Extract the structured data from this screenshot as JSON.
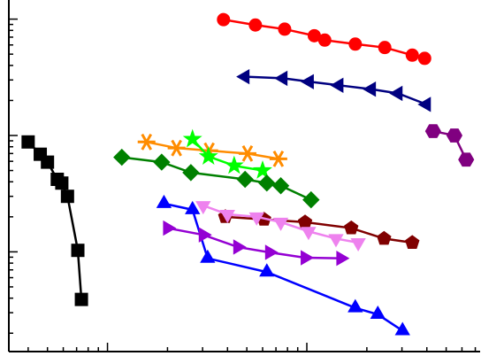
{
  "chart_data": {
    "type": "line",
    "xscale": "log",
    "yscale": "log",
    "xlim": [
      0.32,
      74
    ],
    "ylim": [
      0.0139,
      14.6
    ],
    "xticks": [
      0.4,
      0.5,
      0.6,
      0.7,
      0.8,
      0.9,
      1,
      2,
      3,
      4,
      5,
      6,
      7,
      8,
      9,
      10,
      20,
      30,
      40,
      50,
      60,
      70
    ],
    "yticks": [
      0.02,
      0.03,
      0.04,
      0.05,
      0.06,
      0.07,
      0.08,
      0.09,
      0.1,
      0.2,
      0.3,
      0.4,
      0.5,
      0.6,
      0.7,
      0.8,
      0.9,
      1,
      2,
      3,
      4,
      5,
      6,
      7,
      8,
      9,
      10
    ],
    "series": [
      {
        "color": "#ff0000",
        "marker": "circle",
        "x": [
          3.82,
          5.52,
          7.74,
          10.9,
          12.3,
          17.5,
          24.6,
          33.8,
          39.0
        ],
        "values": [
          9.9,
          8.9,
          8.2,
          7.2,
          6.6,
          6.1,
          5.7,
          4.9,
          4.6
        ]
      },
      {
        "color": "#000080",
        "marker": "triangle-left",
        "x": [
          4.9,
          7.6,
          10.3,
          14.5,
          21.1,
          28.7,
          39.8
        ],
        "values": [
          3.2,
          3.1,
          2.9,
          2.7,
          2.5,
          2.3,
          1.85
        ]
      },
      {
        "color": "#800080",
        "marker": "hexagon",
        "x": [
          43,
          55,
          63
        ],
        "values": [
          1.09,
          1.0,
          0.62
        ]
      },
      {
        "color": "#000000",
        "marker": "square",
        "x": [
          0.4,
          0.46,
          0.5,
          0.56,
          0.59,
          0.63,
          0.71,
          0.74
        ],
        "values": [
          0.88,
          0.69,
          0.59,
          0.42,
          0.39,
          0.3,
          0.103,
          0.039
        ]
      },
      {
        "color": "#ff8c00",
        "marker": "asterisk",
        "x": [
          1.57,
          2.22,
          3.24,
          5.04,
          7.2
        ],
        "values": [
          0.88,
          0.78,
          0.74,
          0.7,
          0.63
        ]
      },
      {
        "color": "#00ff00",
        "marker": "star",
        "x": [
          2.67,
          3.21,
          4.32,
          6.0
        ],
        "values": [
          0.93,
          0.66,
          0.55,
          0.5
        ]
      },
      {
        "color": "#008000",
        "marker": "diamond",
        "x": [
          1.18,
          1.87,
          2.62,
          4.9,
          6.3,
          7.4,
          10.5
        ],
        "values": [
          0.65,
          0.59,
          0.48,
          0.42,
          0.39,
          0.37,
          0.28
        ]
      },
      {
        "color": "#0000ff",
        "marker": "triangle-up",
        "x": [
          1.92,
          2.67,
          3.18,
          6.3,
          17.5,
          22.7,
          30.2
        ],
        "values": [
          0.26,
          0.23,
          0.088,
          0.067,
          0.033,
          0.029,
          0.021
        ]
      },
      {
        "color": "#800000",
        "marker": "pentagon",
        "x": [
          3.9,
          6.1,
          9.8,
          16.7,
          24.4,
          33.8
        ],
        "values": [
          0.2,
          0.19,
          0.18,
          0.16,
          0.13,
          0.12
        ]
      },
      {
        "color": "#ee82ee",
        "marker": "triangle-down",
        "x": [
          3.02,
          4.0,
          5.6,
          7.4,
          10.2,
          14.0,
          18.1
        ],
        "values": [
          0.25,
          0.21,
          0.2,
          0.18,
          0.15,
          0.13,
          0.12
        ]
      },
      {
        "color": "#9400d3",
        "marker": "triangle-right",
        "x": [
          2.0,
          3.02,
          4.5,
          6.5,
          9.8,
          14.8
        ],
        "values": [
          0.16,
          0.14,
          0.11,
          0.099,
          0.089,
          0.088
        ]
      }
    ]
  }
}
